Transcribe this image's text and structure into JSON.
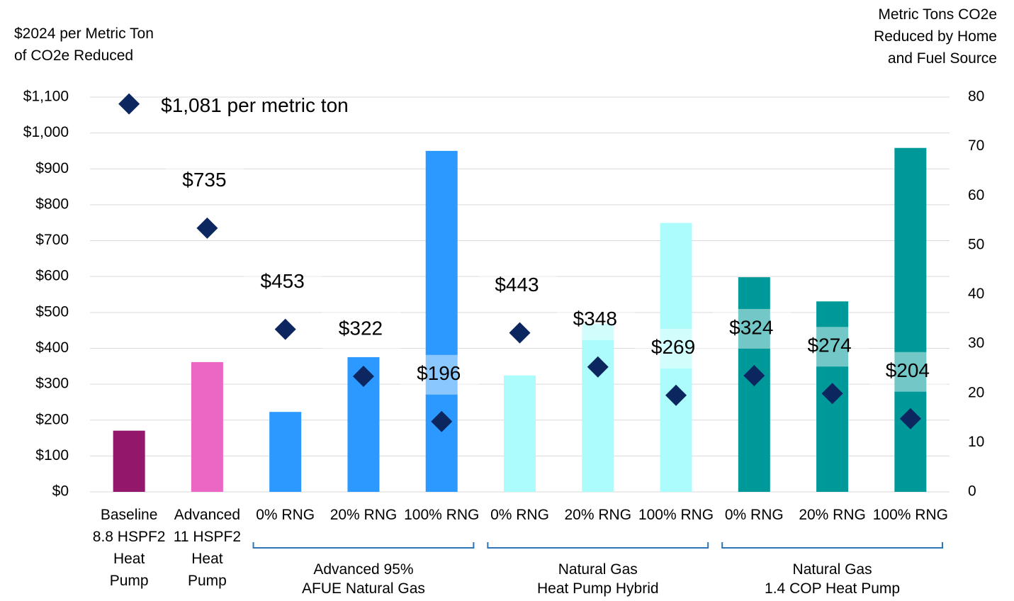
{
  "chart_data": {
    "type": "bar",
    "y_label": "$2024 per Metric Ton\nof CO2e Reduced",
    "y2_label": "Metric Tons CO2e\nReduced by Home\nand Fuel Source",
    "categories": [
      "Baseline\n8.8 HSPF2\nHeat\nPump",
      "Advanced\n11 HSPF2\nHeat\nPump",
      "0% RNG",
      "20% RNG",
      "100% RNG",
      "0% RNG",
      "20% RNG",
      "100% RNG",
      "0% RNG",
      "20% RNG",
      "100% RNG"
    ],
    "groups": [
      "Advanced 95%\nAFUE Natural Gas",
      "Natural Gas\nHeat Pump Hybrid",
      "Natural Gas\n1.4 COP Heat Pump"
    ],
    "series": [
      {
        "type": "bar",
        "axis": "y2",
        "colors": [
          "#93176a",
          "#ea68c3",
          "#2b99ff",
          "#2b99ff",
          "#2b99ff",
          "#adfcfc",
          "#adfcfc",
          "#adfcfc",
          "#009999",
          "#009999",
          "#009999"
        ],
        "values": [
          12.4,
          26.3,
          16.2,
          27.3,
          69.1,
          23.6,
          34.1,
          54.5,
          43.5,
          38.6,
          69.7
        ]
      },
      {
        "type": "scatter",
        "axis": "y",
        "color": "#0c2660",
        "values": [
          1081,
          735,
          453,
          322,
          196,
          443,
          348,
          269,
          324,
          274,
          204
        ],
        "value_labels": [
          "$1,081 per metric ton",
          "$735",
          "$453",
          "$322",
          "$196",
          "$443",
          "$348",
          "$269",
          "$324",
          "$274",
          "$204"
        ]
      }
    ],
    "ylim": [
      0,
      1100
    ],
    "yticks": [
      {
        "value": 0,
        "label": "$0"
      },
      {
        "value": 100,
        "label": "$100"
      },
      {
        "value": 200,
        "label": "$200"
      },
      {
        "value": 300,
        "label": "$300"
      },
      {
        "value": 400,
        "label": "$400"
      },
      {
        "value": 500,
        "label": "$500"
      },
      {
        "value": 600,
        "label": "$600"
      },
      {
        "value": 700,
        "label": "$700"
      },
      {
        "value": 800,
        "label": "$800"
      },
      {
        "value": 900,
        "label": "$900"
      },
      {
        "value": 1000,
        "label": "$1,000"
      },
      {
        "value": 1100,
        "label": "$1,100"
      }
    ],
    "y2lim": [
      0,
      80
    ],
    "y2ticks": [
      0,
      10,
      20,
      30,
      40,
      50,
      60,
      70,
      80
    ],
    "grid": true
  }
}
